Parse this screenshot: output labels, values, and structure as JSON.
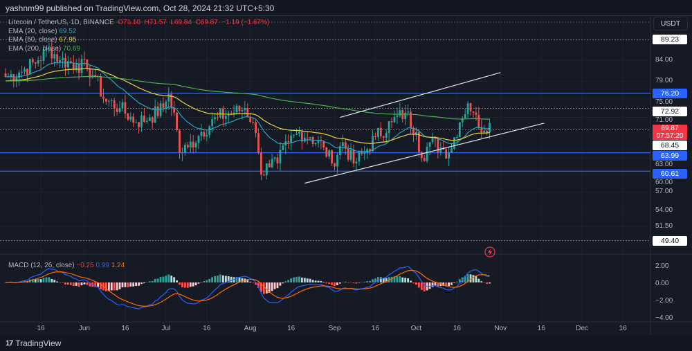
{
  "header": "yashnm99 published on TradingView.com, Oct 28, 2024 21:32 UTC+5:30",
  "legend": {
    "symbol": "Litecoin / TetherUS, 1D, BINANCE",
    "o": "O71.10",
    "h": "H71.57",
    "l": "L69.84",
    "c": "C69.87",
    "chg": "−1.19 (−1.67%)",
    "ema20": {
      "label": "EMA (20, close)",
      "value": "69.52",
      "color": "#26a5bf"
    },
    "ema50": {
      "label": "EMA (50, close)",
      "value": "67.95",
      "color": "#e8d640"
    },
    "ema200": {
      "label": "EMA (200, close)",
      "value": "70.69",
      "color": "#4caf50"
    }
  },
  "macd": {
    "label": "MACD (12, 26, close)",
    "hist": "−0.25",
    "macd": "0.99",
    "signal": "1.24"
  },
  "currency": "USDT",
  "current": {
    "price": "69.87",
    "countdown": "07:57:20"
  },
  "logo": "TradingView",
  "chart_data": {
    "type": "candlestick",
    "title": "Litecoin / TetherUS, 1D, BINANCE",
    "scale": "log",
    "ylim": [
      48.5,
      92
    ],
    "price_ticks": [
      "84.00",
      "79.00",
      "75.00",
      "71.00",
      "63.00",
      "60.00",
      "57.00",
      "54.00",
      "51.50"
    ],
    "price_tick_values": [
      84,
      79,
      75,
      71,
      63,
      60,
      57,
      54,
      51.5
    ],
    "x_ticks": [
      "16",
      "Jun",
      "16",
      "Jul",
      "16",
      "Aug",
      "16",
      "Sep",
      "16",
      "Oct",
      "16",
      "Nov",
      "16",
      "Dec",
      "16"
    ],
    "x_tick_days": [
      13,
      29,
      44,
      59,
      74,
      90,
      105,
      121,
      136,
      151,
      166,
      182,
      197,
      212,
      227
    ],
    "close_keypoints_day": [
      0,
      5,
      12,
      16,
      20,
      26,
      30,
      33,
      36,
      42,
      48,
      53,
      58,
      60,
      62,
      64,
      67,
      72,
      78,
      84,
      88,
      91,
      93,
      94,
      96,
      100,
      104,
      108,
      112,
      117,
      120,
      124,
      128,
      132,
      136,
      142,
      147,
      151,
      153,
      156,
      160,
      163,
      167,
      170,
      172,
      174,
      178
    ],
    "close_keypoints": [
      80,
      81,
      84,
      87,
      84,
      83,
      82,
      80,
      75,
      73,
      70,
      71,
      73,
      76,
      72,
      64,
      65,
      68,
      71,
      72,
      73,
      70,
      64,
      60,
      62,
      62,
      66,
      68,
      67,
      65,
      62,
      66,
      62,
      64,
      67,
      70,
      72,
      68,
      63,
      66,
      65,
      64,
      70,
      74,
      72,
      69,
      69.87
    ],
    "levels_support_resistance": [
      {
        "value": 76.2,
        "label": "76.20"
      },
      {
        "value": 63.99,
        "label": "63.99"
      },
      {
        "value": 60.61,
        "label": "60.61"
      }
    ],
    "levels_dotted": [
      {
        "value": 89.23,
        "label": "89.23"
      },
      {
        "value": 72.92,
        "label": "72.92"
      },
      {
        "value": 68.45,
        "label": "68.45"
      },
      {
        "value": 49.4,
        "label": "49.40"
      }
    ],
    "channel": {
      "upper": [
        [
          123,
          71
        ],
        [
          182,
          81
        ]
      ],
      "lower": [
        [
          110,
          58.5
        ],
        [
          198,
          69.8
        ]
      ]
    },
    "macd_ticks": [
      "2.00",
      "0.00",
      "−2.00",
      "−4.00"
    ],
    "macd_tick_values": [
      2,
      0,
      -2,
      -4
    ],
    "colors": {
      "up": "#26a69a",
      "down": "#ef5350",
      "macd": "#2962ff",
      "signal": "#ff6d00",
      "level": "#2962ff"
    }
  }
}
